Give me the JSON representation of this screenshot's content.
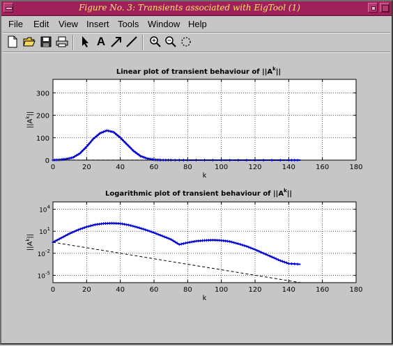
{
  "window": {
    "title": "Figure No. 3: Transients associated with EigTool (1)"
  },
  "menu": [
    {
      "label": "File"
    },
    {
      "label": "Edit"
    },
    {
      "label": "View"
    },
    {
      "label": "Insert"
    },
    {
      "label": "Tools"
    },
    {
      "label": "Window"
    },
    {
      "label": "Help"
    }
  ],
  "toolbar": {
    "icons": [
      "new-file-icon",
      "open-folder-icon",
      "save-icon",
      "print-icon",
      "arrow-pointer-icon",
      "text-tool-icon",
      "arrow-tool-icon",
      "line-tool-icon",
      "zoom-in-icon",
      "zoom-out-icon",
      "rotate-icon"
    ],
    "text_tool_label": "A"
  },
  "chart_data": [
    {
      "type": "line",
      "title": "Linear plot of transient behaviour of ||A^k||",
      "title_main": "Linear plot of transient behaviour of ||A",
      "title_sup": "k",
      "title_end": "||",
      "xlabel": "k",
      "ylabel_main": "||A",
      "ylabel_sup": "k",
      "ylabel_end": "||",
      "xlim": [
        0,
        180
      ],
      "ylim": [
        0,
        360
      ],
      "xticks": [
        0,
        20,
        40,
        60,
        80,
        100,
        120,
        140,
        160,
        180
      ],
      "yticks": [
        0,
        100,
        200,
        300
      ],
      "grid": true,
      "series": [
        {
          "style": "solid-with-markers",
          "color": "#0000cc",
          "x": [
            0,
            4,
            8,
            12,
            16,
            20,
            24,
            28,
            32,
            36,
            40,
            44,
            48,
            52,
            56,
            60,
            64,
            70,
            80,
            100,
            120,
            140,
            147
          ],
          "y": [
            0.3,
            1.5,
            5,
            12,
            30,
            60,
            95,
            120,
            132,
            125,
            100,
            70,
            40,
            18,
            7,
            2,
            0.5,
            0.2,
            0.1,
            0.1,
            0.1,
            0.1,
            0.1
          ]
        },
        {
          "style": "dashed",
          "color": "#000000",
          "x": [
            0,
            140
          ],
          "y": [
            0.3,
            0.0
          ]
        }
      ]
    },
    {
      "type": "line",
      "title": "Logarithmic plot of transient behaviour of ||A^k||",
      "title_main": "Logarithmic plot of transient behaviour of ||A",
      "title_sup": "k",
      "title_end": "||",
      "xlabel": "k",
      "ylabel_main": "||A",
      "ylabel_sup": "k",
      "ylabel_end": "||",
      "xlim": [
        0,
        180
      ],
      "ylim_log10": [
        -6,
        5
      ],
      "yscale": "log",
      "xticks": [
        0,
        20,
        40,
        60,
        80,
        100,
        120,
        140,
        160,
        180
      ],
      "yticks_log10": [
        4,
        1,
        -2,
        -5
      ],
      "ytick_base": "10",
      "grid": true,
      "series": [
        {
          "style": "solid-with-markers",
          "color": "#0000cc",
          "x": [
            0,
            5,
            10,
            15,
            20,
            25,
            30,
            35,
            40,
            45,
            50,
            55,
            60,
            65,
            70,
            75,
            80,
            85,
            90,
            95,
            100,
            105,
            110,
            115,
            120,
            125,
            130,
            135,
            140,
            147
          ],
          "log10y": [
            -0.5,
            0.1,
            0.7,
            1.2,
            1.6,
            1.9,
            2.05,
            2.1,
            2.05,
            1.85,
            1.55,
            1.2,
            0.8,
            0.35,
            -0.1,
            -0.8,
            -0.55,
            -0.35,
            -0.25,
            -0.2,
            -0.25,
            -0.4,
            -0.7,
            -1.05,
            -1.5,
            -2.0,
            -2.5,
            -3.0,
            -3.4,
            -3.5
          ]
        },
        {
          "style": "dashed",
          "color": "#000000",
          "log10y": [
            -0.5,
            -6
          ],
          "x": [
            0,
            147
          ]
        }
      ]
    }
  ]
}
